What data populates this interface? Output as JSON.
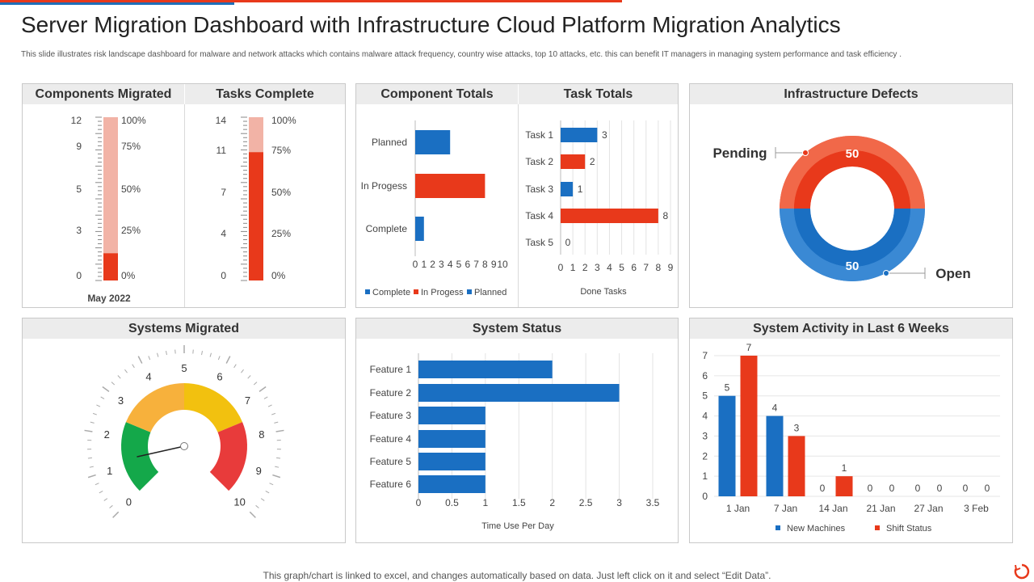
{
  "page": {
    "title": "Server Migration Dashboard with Infrastructure Cloud Platform Migration Analytics",
    "subtitle": "This slide illustrates risk landscape dashboard for malware and network attacks which contains malware attack frequency, country wise attacks, top 10 attacks, etc. this can benefit IT managers in managing system performance and task efficiency .",
    "footer": "This graph/chart is linked to excel,  and changes automatically based on data. Just left click on it and select “Edit Data”.",
    "colors": {
      "red": "#e8391b",
      "blue": "#1a6fc2",
      "light_red": "#f2b3a6",
      "accent_blue": "#1f6fb8"
    }
  },
  "chart_data": [
    {
      "id": "components_migrated",
      "type": "bar",
      "title": "Components Migrated",
      "ticks_left": [
        "12",
        "9",
        "5",
        "3",
        "0"
      ],
      "ticks_right": [
        "100%",
        "75%",
        "50%",
        "25%",
        "0%"
      ],
      "max": 12,
      "value": 2,
      "xlabel": "May 2022"
    },
    {
      "id": "tasks_complete",
      "type": "bar",
      "title": "Tasks Complete",
      "ticks_left": [
        "14",
        "11",
        "7",
        "4",
        "0"
      ],
      "ticks_right": [
        "100%",
        "75%",
        "50%",
        "25%",
        "0%"
      ],
      "max": 14,
      "value": 11
    },
    {
      "id": "component_totals",
      "type": "bar",
      "title": "Component Totals",
      "categories": [
        "Planned",
        "In Progess",
        "Complete"
      ],
      "values": [
        4,
        8,
        1
      ],
      "colors": [
        "#1a6fc2",
        "#e8391b",
        "#1a6fc2"
      ],
      "xticks": [
        "0",
        "1",
        "2",
        "3",
        "4",
        "5",
        "6",
        "7",
        "8",
        "9",
        "10"
      ],
      "xlim": [
        0,
        10
      ],
      "legend": [
        "Complete",
        "In Progess",
        "Planned"
      ],
      "legend_colors": [
        "#1a6fc2",
        "#e8391b",
        "#1a6fc2"
      ]
    },
    {
      "id": "task_totals",
      "type": "bar",
      "title": "Task Totals",
      "categories": [
        "Task 1",
        "Task 2",
        "Task 3",
        "Task 4",
        "Task 5"
      ],
      "values": [
        3,
        2,
        1,
        8,
        0
      ],
      "value_labels": [
        "3",
        "2",
        "1",
        "8",
        "0"
      ],
      "colors": [
        "#1a6fc2",
        "#e8391b",
        "#1a6fc2",
        "#e8391b",
        "#1a6fc2"
      ],
      "xticks": [
        "0",
        "1",
        "2",
        "3",
        "4",
        "5",
        "6",
        "7",
        "8",
        "9"
      ],
      "xlim": [
        0,
        9
      ],
      "xlabel": "Done Tasks"
    },
    {
      "id": "infrastructure_defects",
      "type": "pie",
      "title": "Infrastructure Defects",
      "labels": [
        "Pending",
        "Open"
      ],
      "values": [
        50,
        50
      ],
      "value_labels": [
        "50",
        "50"
      ],
      "colors": [
        "#e8391b",
        "#1a6fc2"
      ]
    },
    {
      "id": "systems_migrated",
      "type": "gauge",
      "title": "Systems Migrated",
      "scale_labels": [
        "0",
        "1",
        "2",
        "3",
        "4",
        "5",
        "6",
        "7",
        "8",
        "9",
        "10"
      ],
      "min": 0,
      "max": 10,
      "value": 1.2,
      "bands": [
        {
          "from": 0,
          "to": 2.5,
          "color": "#14a84a"
        },
        {
          "from": 2.5,
          "to": 5,
          "color": "#f7b13c"
        },
        {
          "from": 5,
          "to": 7.5,
          "color": "#f2c10f"
        },
        {
          "from": 7.5,
          "to": 10,
          "color": "#e83b3b"
        }
      ]
    },
    {
      "id": "system_status",
      "type": "bar",
      "title": "System Status",
      "categories": [
        "Feature 1",
        "Feature 2",
        "Feature 3",
        "Feature 4",
        "Feature 5",
        "Feature 6"
      ],
      "values": [
        2,
        3,
        1,
        1,
        1,
        1
      ],
      "xticks": [
        "0",
        "0.5",
        "1",
        "1.5",
        "2",
        "2.5",
        "3",
        "3.5"
      ],
      "xlim": [
        0,
        3.5
      ],
      "xlabel": "Time  Use Per Day",
      "color": "#1a6fc2"
    },
    {
      "id": "system_activity",
      "type": "bar",
      "title": "System Activity in Last 6 Weeks",
      "categories": [
        "1 Jan",
        "7 Jan",
        "14 Jan",
        "21 Jan",
        "27 Jan",
        "3 Feb"
      ],
      "series": [
        {
          "name": "New Machines",
          "values": [
            5,
            4,
            0,
            0,
            0,
            0
          ],
          "labels": [
            "5",
            "4",
            "0",
            "0",
            "0",
            "0"
          ],
          "color": "#1a6fc2"
        },
        {
          "name": "Shift Status",
          "values": [
            7,
            3,
            1,
            0,
            0,
            0
          ],
          "labels": [
            "7",
            "3",
            "1",
            "0",
            "0",
            "0"
          ],
          "color": "#e8391b"
        }
      ],
      "yticks": [
        "0",
        "1",
        "2",
        "3",
        "4",
        "5",
        "6",
        "7"
      ],
      "ylim": [
        0,
        7
      ]
    }
  ]
}
